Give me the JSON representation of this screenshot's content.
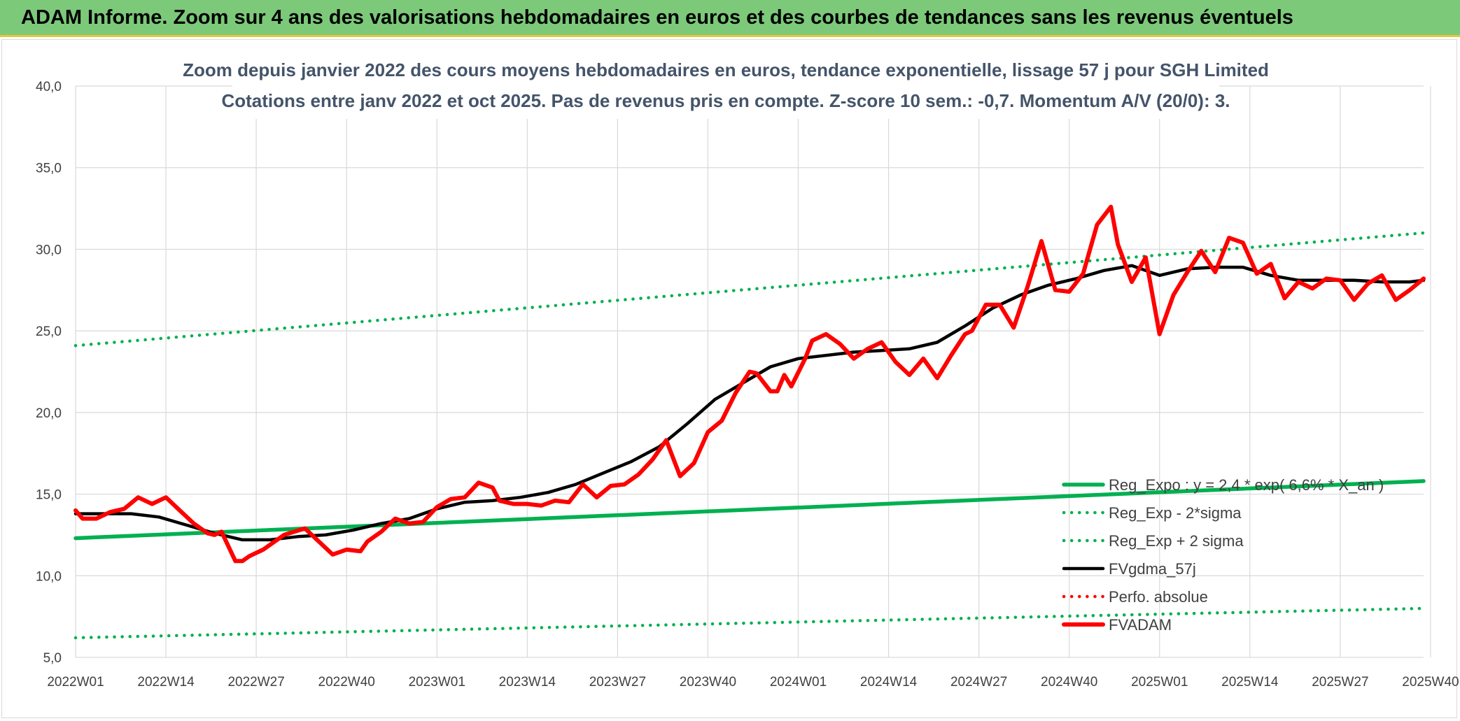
{
  "banner": {
    "text": "ADAM Informe. Zoom sur 4 ans des valorisations hebdomadaires en euros et des courbes de tendances sans les revenus éventuels"
  },
  "chart_data": {
    "type": "line",
    "title": "Zoom depuis janvier 2022 des cours moyens hebdomadaires en euros, tendance exponentielle, lissage 57 j pour SGH Limited",
    "subtitle": "Cotations entre janv 2022 et oct 2025. Pas de revenus pris en compte. Z-score 10 sem.: -0,7. Momentum A/V (20/0): 3.",
    "xlabel": "",
    "ylabel": "",
    "ylim": [
      5,
      40
    ],
    "yticks": [
      "5,0",
      "10,0",
      "15,0",
      "20,0",
      "25,0",
      "30,0",
      "35,0",
      "40,0"
    ],
    "xticks": [
      "2022W01",
      "2022W14",
      "2022W27",
      "2022W40",
      "2023W01",
      "2023W14",
      "2023W27",
      "2023W40",
      "2024W01",
      "2024W14",
      "2024W27",
      "2024W40",
      "2025W01",
      "2025W14",
      "2025W27",
      "2025W40"
    ],
    "grid": true,
    "legend_position": "bottom-right",
    "colors": {
      "green": "#00b050",
      "black": "#000000",
      "red": "#ff0000",
      "banner": "#7cc97a",
      "title": "#44546a"
    },
    "series": [
      {
        "name": "Reg_Expo : y = 2,4 * exp( 6,6% * X_an )",
        "style": "solid-thick",
        "color": "#00b050",
        "x": [
          0,
          194
        ],
        "values": [
          12.3,
          15.8
        ]
      },
      {
        "name": "Reg_Exp - 2*sigma",
        "style": "dotted",
        "color": "#00b050",
        "x": [
          0,
          194
        ],
        "values": [
          6.2,
          8.0
        ]
      },
      {
        "name": "Reg_Exp + 2 sigma",
        "style": "dotted",
        "color": "#00b050",
        "x": [
          0,
          194
        ],
        "values": [
          24.1,
          31.0
        ]
      },
      {
        "name": "FVgdma_57j",
        "style": "solid",
        "color": "#000000",
        "x": [
          0,
          4,
          8,
          12,
          16,
          20,
          24,
          28,
          32,
          36,
          40,
          44,
          48,
          52,
          56,
          60,
          64,
          68,
          72,
          76,
          80,
          84,
          88,
          92,
          96,
          100,
          104,
          108,
          112,
          116,
          120,
          124,
          128,
          132,
          136,
          140,
          144,
          148,
          152,
          156,
          160,
          164,
          168,
          172,
          176,
          180,
          184,
          188,
          192,
          194
        ],
        "values": [
          13.8,
          13.8,
          13.8,
          13.6,
          13.1,
          12.6,
          12.2,
          12.2,
          12.4,
          12.5,
          12.8,
          13.2,
          13.5,
          14.1,
          14.5,
          14.6,
          14.8,
          15.1,
          15.6,
          16.3,
          17.0,
          17.9,
          19.3,
          20.8,
          21.8,
          22.8,
          23.3,
          23.5,
          23.7,
          23.8,
          23.9,
          24.3,
          25.3,
          26.4,
          27.2,
          27.8,
          28.2,
          28.7,
          29.0,
          28.4,
          28.8,
          28.9,
          28.9,
          28.4,
          28.1,
          28.1,
          28.1,
          28.0,
          28.0,
          28.1
        ]
      },
      {
        "name": "Perfo. absolue",
        "style": "dotted",
        "color": "#ff0000",
        "x": [],
        "values": []
      },
      {
        "name": "FVADAM",
        "style": "solid-thick",
        "color": "#ff0000",
        "x": [
          0,
          1,
          3,
          5,
          7,
          9,
          11,
          13,
          15,
          17,
          19,
          20,
          21,
          23,
          24,
          25,
          27,
          30,
          33,
          35,
          37,
          39,
          41,
          42,
          44,
          46,
          48,
          50,
          52,
          54,
          56,
          58,
          60,
          61,
          63,
          65,
          67,
          69,
          71,
          73,
          75,
          77,
          79,
          81,
          83,
          85,
          87,
          89,
          91,
          93,
          95,
          97,
          98,
          100,
          101,
          102,
          103,
          105,
          106,
          108,
          110,
          112,
          114,
          116,
          118,
          120,
          122,
          124,
          126,
          128,
          129,
          131,
          133,
          135,
          137,
          139,
          141,
          143,
          145,
          147,
          149,
          150,
          152,
          154,
          156,
          158,
          160,
          162,
          164,
          166,
          168,
          170,
          172,
          174,
          176,
          178,
          180,
          182,
          184,
          186,
          188,
          190,
          192,
          194
        ],
        "values": [
          14.0,
          13.5,
          13.5,
          13.9,
          14.1,
          14.8,
          14.4,
          14.8,
          14.0,
          13.2,
          12.6,
          12.5,
          12.7,
          10.9,
          10.9,
          11.2,
          11.6,
          12.5,
          12.9,
          12.1,
          11.3,
          11.6,
          11.5,
          12.1,
          12.7,
          13.5,
          13.2,
          13.3,
          14.2,
          14.7,
          14.8,
          15.7,
          15.4,
          14.6,
          14.4,
          14.4,
          14.3,
          14.6,
          14.5,
          15.6,
          14.8,
          15.5,
          15.6,
          16.2,
          17.1,
          18.3,
          16.1,
          16.9,
          18.8,
          19.5,
          21.2,
          22.5,
          22.4,
          21.3,
          21.3,
          22.3,
          21.6,
          23.3,
          24.4,
          24.8,
          24.2,
          23.3,
          23.9,
          24.3,
          23.1,
          22.3,
          23.3,
          22.1,
          23.5,
          24.8,
          25.0,
          26.6,
          26.6,
          25.2,
          27.7,
          30.5,
          27.5,
          27.4,
          28.5,
          31.5,
          32.6,
          30.3,
          28.0,
          29.5,
          24.8,
          27.2,
          28.6,
          29.9,
          28.6,
          30.7,
          30.4,
          28.5,
          29.1,
          27.0,
          28.0,
          27.6,
          28.2,
          28.1,
          26.9,
          27.9,
          28.4,
          26.9,
          27.5,
          28.2
        ]
      }
    ]
  }
}
